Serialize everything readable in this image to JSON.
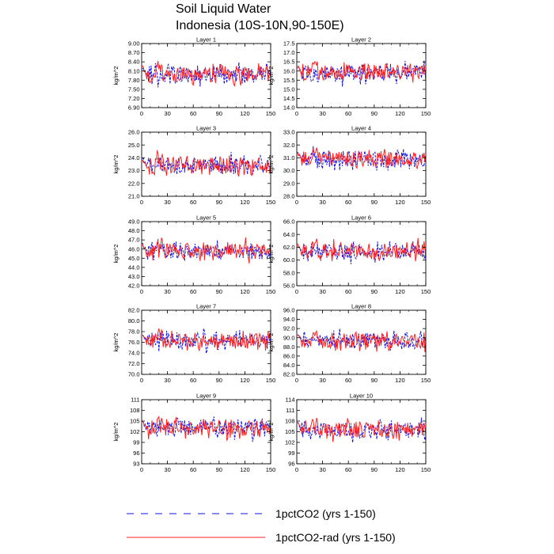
{
  "figure": {
    "title_line1": "Soil Liquid Water",
    "title_line2": "Indonesia (10S-10N,90-150E)"
  },
  "legend": [
    {
      "label": "1pctCO2 (yrs 1-150)",
      "color": "#1010e0",
      "dash": true
    },
    {
      "label": "1pctCO2-rad (yrs 1-150)",
      "color": "#ff2020",
      "dash": false
    }
  ],
  "chart_data": [
    {
      "type": "line",
      "title": "Layer 1",
      "ylabel": "kg/m^2",
      "xlim": [
        0,
        150
      ],
      "xticks": [
        0,
        30,
        60,
        90,
        120,
        150
      ],
      "ylim": [
        6.9,
        9.0
      ],
      "yticks": [
        "6.90",
        "7.20",
        "7.50",
        "7.80",
        "8.10",
        "8.40",
        "8.70",
        "9.00"
      ],
      "mean": 8.0,
      "amp": 0.35,
      "series": [
        {
          "name": "1pctCO2 (yrs 1-150)",
          "x_range": [
            1,
            150
          ],
          "color": "#1010e0"
        },
        {
          "name": "1pctCO2-rad (yrs 1-150)",
          "x_range": [
            1,
            150
          ],
          "color": "#ff2020"
        }
      ]
    },
    {
      "type": "line",
      "title": "Layer 2",
      "ylabel": "kg/m^2",
      "xlim": [
        0,
        150
      ],
      "xticks": [
        0,
        30,
        60,
        90,
        120,
        150
      ],
      "ylim": [
        14.0,
        17.5
      ],
      "yticks": [
        "14.0",
        "14.5",
        "15.0",
        "15.5",
        "16.0",
        "16.5",
        "17.0",
        "17.5"
      ],
      "mean": 15.9,
      "amp": 0.55,
      "series": [
        {
          "name": "1pctCO2 (yrs 1-150)",
          "x_range": [
            1,
            150
          ],
          "color": "#1010e0"
        },
        {
          "name": "1pctCO2-rad (yrs 1-150)",
          "x_range": [
            1,
            150
          ],
          "color": "#ff2020"
        }
      ]
    },
    {
      "type": "line",
      "title": "Layer 3",
      "ylabel": "kg/m^2",
      "xlim": [
        0,
        150
      ],
      "xticks": [
        0,
        30,
        60,
        90,
        120,
        150
      ],
      "ylim": [
        21.0,
        26.0
      ],
      "yticks": [
        "21.0",
        "22.0",
        "23.0",
        "24.0",
        "25.0",
        "26.0"
      ],
      "mean": 23.4,
      "amp": 0.8,
      "series": [
        {
          "name": "1pctCO2 (yrs 1-150)",
          "x_range": [
            1,
            150
          ],
          "color": "#1010e0"
        },
        {
          "name": "1pctCO2-rad (yrs 1-150)",
          "x_range": [
            1,
            150
          ],
          "color": "#ff2020"
        }
      ]
    },
    {
      "type": "line",
      "title": "Layer 4",
      "ylabel": "kg/m^2",
      "xlim": [
        0,
        150
      ],
      "xticks": [
        0,
        30,
        60,
        90,
        120,
        150
      ],
      "ylim": [
        28.0,
        33.0
      ],
      "yticks": [
        "28.0",
        "29.0",
        "30.0",
        "31.0",
        "32.0",
        "33.0"
      ],
      "mean": 30.9,
      "amp": 0.8,
      "series": [
        {
          "name": "1pctCO2 (yrs 1-150)",
          "x_range": [
            1,
            150
          ],
          "color": "#1010e0"
        },
        {
          "name": "1pctCO2-rad (yrs 1-150)",
          "x_range": [
            1,
            150
          ],
          "color": "#ff2020"
        }
      ]
    },
    {
      "type": "line",
      "title": "Layer 5",
      "ylabel": "kg/m^2",
      "xlim": [
        0,
        150
      ],
      "xticks": [
        0,
        30,
        60,
        90,
        120,
        150
      ],
      "ylim": [
        42.0,
        49.0
      ],
      "yticks": [
        "42.0",
        "43.0",
        "44.0",
        "45.0",
        "46.0",
        "47.0",
        "48.0",
        "49.0"
      ],
      "mean": 45.8,
      "amp": 1.1,
      "series": [
        {
          "name": "1pctCO2 (yrs 1-150)",
          "x_range": [
            1,
            150
          ],
          "color": "#1010e0"
        },
        {
          "name": "1pctCO2-rad (yrs 1-150)",
          "x_range": [
            1,
            150
          ],
          "color": "#ff2020"
        }
      ]
    },
    {
      "type": "line",
      "title": "Layer 6",
      "ylabel": "kg/m^2",
      "xlim": [
        0,
        150
      ],
      "xticks": [
        0,
        30,
        60,
        90,
        120,
        150
      ],
      "ylim": [
        56.0,
        66.0
      ],
      "yticks": [
        "56.0",
        "58.0",
        "60.0",
        "62.0",
        "64.0",
        "66.0"
      ],
      "mean": 61.3,
      "amp": 1.6,
      "series": [
        {
          "name": "1pctCO2 (yrs 1-150)",
          "x_range": [
            1,
            150
          ],
          "color": "#1010e0"
        },
        {
          "name": "1pctCO2-rad (yrs 1-150)",
          "x_range": [
            1,
            150
          ],
          "color": "#ff2020"
        }
      ]
    },
    {
      "type": "line",
      "title": "Layer 7",
      "ylabel": "kg/m^2",
      "xlim": [
        0,
        150
      ],
      "xticks": [
        0,
        30,
        60,
        90,
        120,
        150
      ],
      "ylim": [
        70.0,
        82.0
      ],
      "yticks": [
        "70.0",
        "72.0",
        "74.0",
        "76.0",
        "78.0",
        "80.0",
        "82.0"
      ],
      "mean": 76.3,
      "amp": 1.9,
      "series": [
        {
          "name": "1pctCO2 (yrs 1-150)",
          "x_range": [
            1,
            150
          ],
          "color": "#1010e0"
        },
        {
          "name": "1pctCO2-rad (yrs 1-150)",
          "x_range": [
            1,
            150
          ],
          "color": "#ff2020"
        }
      ]
    },
    {
      "type": "line",
      "title": "Layer 8",
      "ylabel": "kg/m^2",
      "xlim": [
        0,
        150
      ],
      "xticks": [
        0,
        30,
        60,
        90,
        120,
        150
      ],
      "ylim": [
        82.0,
        96.0
      ],
      "yticks": [
        "82.0",
        "84.0",
        "86.0",
        "88.0",
        "90.0",
        "92.0",
        "94.0",
        "96.0"
      ],
      "mean": 89.3,
      "amp": 2.2,
      "series": [
        {
          "name": "1pctCO2 (yrs 1-150)",
          "x_range": [
            1,
            150
          ],
          "color": "#1010e0"
        },
        {
          "name": "1pctCO2-rad (yrs 1-150)",
          "x_range": [
            1,
            150
          ],
          "color": "#ff2020"
        }
      ]
    },
    {
      "type": "line",
      "title": "Layer 9",
      "ylabel": "kg/m^2",
      "xlim": [
        0,
        150
      ],
      "xticks": [
        0,
        30,
        60,
        90,
        120,
        150
      ],
      "ylim": [
        93,
        111
      ],
      "yticks": [
        "93",
        "96",
        "99",
        "102",
        "105",
        "108",
        "111"
      ],
      "mean": 103,
      "amp": 2.8,
      "series": [
        {
          "name": "1pctCO2 (yrs 1-150)",
          "x_range": [
            1,
            150
          ],
          "color": "#1010e0"
        },
        {
          "name": "1pctCO2-rad (yrs 1-150)",
          "x_range": [
            1,
            150
          ],
          "color": "#ff2020"
        }
      ]
    },
    {
      "type": "line",
      "title": "Layer 10",
      "ylabel": "kg/m^2",
      "xlim": [
        0,
        150
      ],
      "xticks": [
        0,
        30,
        60,
        90,
        120,
        150
      ],
      "ylim": [
        96,
        114
      ],
      "yticks": [
        "96",
        "99",
        "102",
        "105",
        "108",
        "111",
        "114"
      ],
      "mean": 105.5,
      "amp": 2.8,
      "series": [
        {
          "name": "1pctCO2 (yrs 1-150)",
          "x_range": [
            1,
            150
          ],
          "color": "#1010e0"
        },
        {
          "name": "1pctCO2-rad (yrs 1-150)",
          "x_range": [
            1,
            150
          ],
          "color": "#ff2020"
        }
      ]
    }
  ]
}
